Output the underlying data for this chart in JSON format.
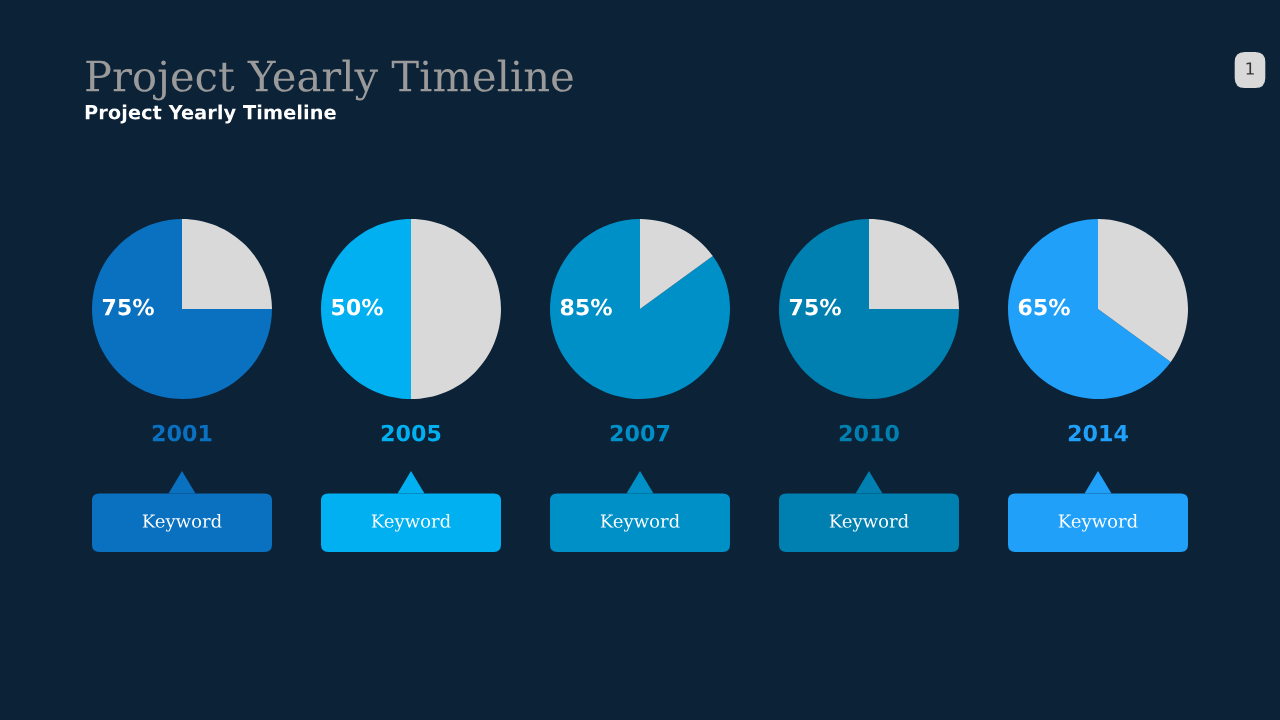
{
  "chart_data": [
    {
      "type": "other",
      "title": "Project Yearly Timeline",
      "subtitle": "Project Yearly Timeline",
      "annotations": [
        "1"
      ]
    },
    {
      "type": "pie",
      "title": "2001",
      "categories": [
        null,
        null
      ],
      "values": [
        75,
        25
      ],
      "colors": [
        "#0a70c0",
        "#d9d9d9"
      ],
      "value_labels": [
        "75%",
        null
      ],
      "annotations": [
        "Keyword"
      ]
    },
    {
      "type": "pie",
      "title": "2005",
      "categories": [
        null,
        null
      ],
      "values": [
        50,
        50
      ],
      "colors": [
        "#00b0f0",
        "#d9d9d9"
      ],
      "value_labels": [
        "50%",
        null
      ],
      "annotations": [
        "Keyword"
      ]
    },
    {
      "type": "pie",
      "title": "2007",
      "categories": [
        null,
        null
      ],
      "values": [
        85,
        15
      ],
      "colors": [
        "#0090c8",
        "#d9d9d9"
      ],
      "value_labels": [
        "85%",
        null
      ],
      "annotations": [
        "Keyword"
      ]
    },
    {
      "type": "pie",
      "title": "2010",
      "categories": [
        null,
        null
      ],
      "values": [
        75,
        25
      ],
      "colors": [
        "#0080b0",
        "#d9d9d9"
      ],
      "value_labels": [
        "75%",
        null
      ],
      "annotations": [
        "Keyword"
      ]
    },
    {
      "type": "pie",
      "title": "2014",
      "categories": [
        null,
        null
      ],
      "values": [
        65,
        35
      ],
      "colors": [
        "#20a0f8",
        "#d9d9d9"
      ],
      "value_labels": [
        "65%",
        null
      ],
      "annotations": [
        "Keyword"
      ]
    }
  ]
}
